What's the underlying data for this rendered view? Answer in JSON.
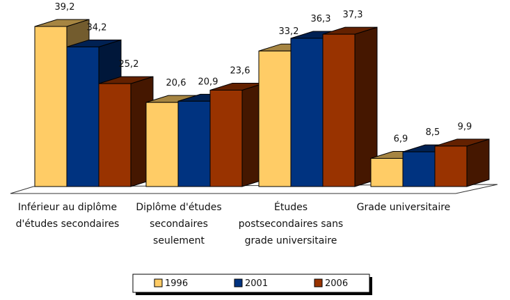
{
  "chart_data": {
    "type": "bar3d",
    "categories": [
      "Inférieur au diplôme d'études secondaires",
      "Diplôme d'études secondaires seulement",
      "Études postsecondaires sans grade universitaire",
      "Grade universitaire"
    ],
    "series": [
      {
        "name": "1996",
        "color": "#ffcc66",
        "values": [
          39.2,
          20.6,
          33.2,
          6.9
        ],
        "value_labels": [
          "39,2",
          "20,6",
          "33,2",
          "6,9"
        ]
      },
      {
        "name": "2001",
        "color": "#003380",
        "values": [
          34.2,
          20.9,
          36.3,
          8.5
        ],
        "value_labels": [
          "34,2",
          "20,9",
          "36,3",
          "8,5"
        ]
      },
      {
        "name": "2006",
        "color": "#993300",
        "values": [
          25.2,
          23.6,
          37.3,
          9.9
        ],
        "value_labels": [
          "25,2",
          "23,6",
          "37,3",
          "9,9"
        ]
      }
    ],
    "legend": "bottom"
  }
}
